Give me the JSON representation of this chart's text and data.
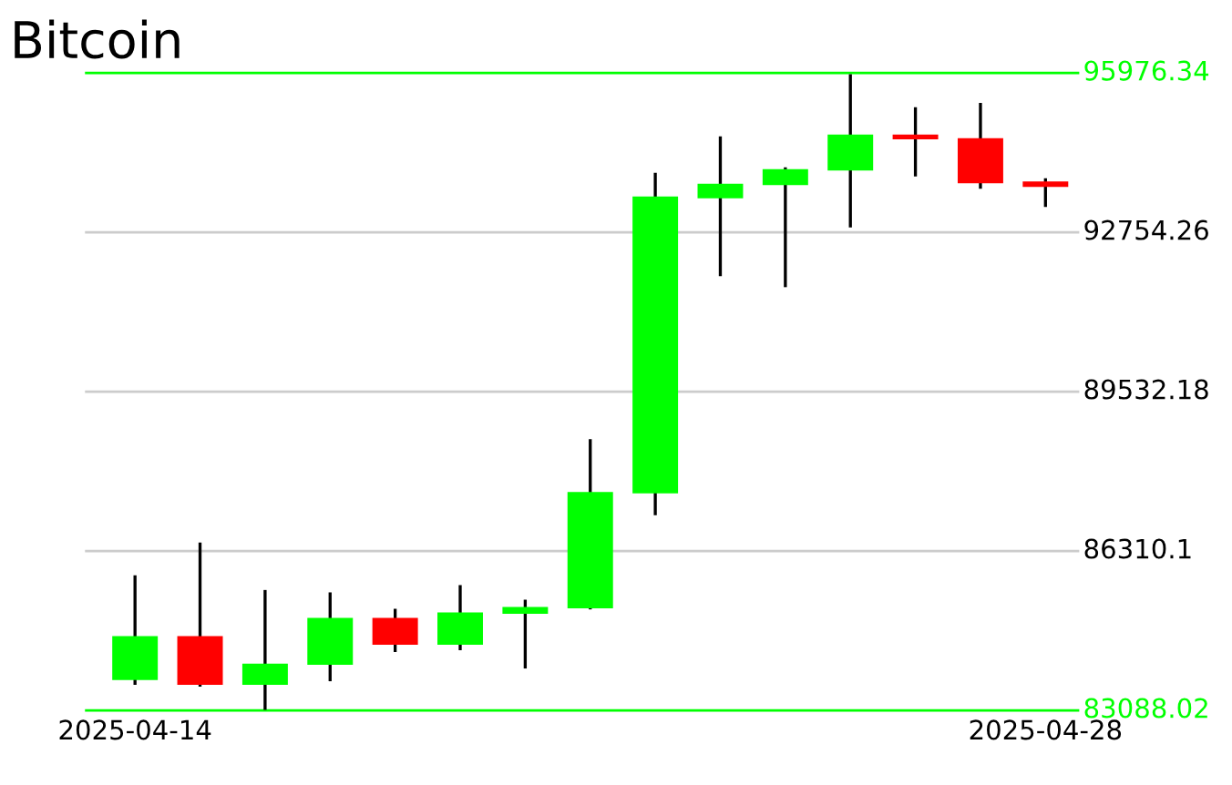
{
  "chart_data": {
    "type": "candlestick",
    "title": "Bitcoin",
    "categories": [
      "2025-04-14",
      null,
      null,
      null,
      null,
      null,
      null,
      null,
      null,
      null,
      null,
      null,
      null,
      null,
      "2025-04-28"
    ],
    "ohlc": [
      [
        83704,
        85818,
        83605,
        84590
      ],
      [
        84590,
        86482,
        83568,
        83605
      ],
      [
        83605,
        85523,
        83100,
        84036
      ],
      [
        84010,
        85475,
        83678,
        84958
      ],
      [
        84958,
        85143,
        84268,
        84416
      ],
      [
        84416,
        85622,
        84305,
        85069
      ],
      [
        85043,
        85327,
        83936,
        85179
      ],
      [
        85154,
        88573,
        85131,
        87503
      ],
      [
        87477,
        93958,
        87035,
        93479
      ],
      [
        93442,
        94696,
        91867,
        93737
      ],
      [
        93711,
        94069,
        91646,
        94032
      ],
      [
        94006,
        95950,
        92852,
        94733
      ],
      [
        94733,
        95286,
        93885,
        94633
      ],
      [
        94659,
        95371,
        93637,
        93748
      ],
      [
        93785,
        93848,
        93269,
        93674
      ]
    ],
    "colors": [
      "#00ff00",
      "#ff0000",
      "#00ff00",
      "#00ff00",
      "#ff0000",
      "#00ff00",
      "#00ff00",
      "#00ff00",
      "#00ff00",
      "#00ff00",
      "#00ff00",
      "#00ff00",
      "#ff0000",
      "#ff0000",
      "#ff0000"
    ],
    "ylim": [
      83088.02,
      95976.34
    ],
    "yticks": [
      {
        "value": 83088.02,
        "label": "83088.02"
      },
      {
        "value": 86310.1,
        "label": "86310.1"
      },
      {
        "value": 89532.18,
        "label": "89532.18"
      },
      {
        "value": 92754.26,
        "label": "92754.26"
      },
      {
        "value": 95976.34,
        "label": "95976.34"
      }
    ],
    "grid": "y"
  }
}
